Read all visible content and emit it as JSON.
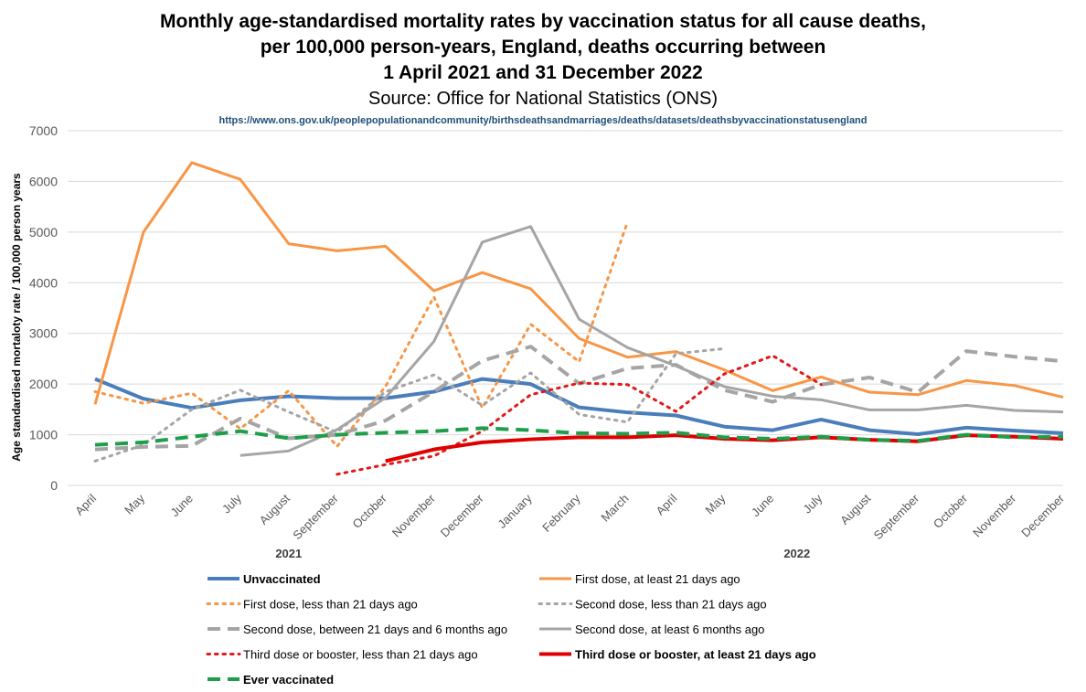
{
  "chart_data": {
    "type": "line",
    "title_lines": [
      "Monthly age-standardised mortality rates by vaccination status for all cause deaths,",
      "per 100,000 person-years, England, deaths occurring between",
      "1 April 2021 and 31 December 2022"
    ],
    "subtitle": "Source: Office for National Statistics (ONS)",
    "source_url": "https://www.ons.gov.uk/peoplepopulationandcommunity/birthsdeathsandmarriages/deaths/datasets/deathsbyvaccinationstatusengland",
    "ylabel": "Age standardised mortaloty rate / 100,000 person years",
    "ylim": [
      0,
      7000
    ],
    "yticks": [
      0,
      1000,
      2000,
      3000,
      4000,
      5000,
      6000,
      7000
    ],
    "categories": [
      "April",
      "May",
      "June",
      "July",
      "August",
      "September",
      "October",
      "November",
      "December",
      "January",
      "February",
      "March",
      "April",
      "May",
      "June",
      "July",
      "August",
      "September",
      "October",
      "November",
      "December"
    ],
    "year_labels": [
      {
        "label": "2021",
        "start": 0,
        "end": 8
      },
      {
        "label": "2022",
        "start": 9,
        "end": 20
      }
    ],
    "grid": "horizontal",
    "legend_position": "bottom",
    "series": [
      {
        "name": "Unvaccinated",
        "color": "#4a7ebb",
        "dash": "solid",
        "width": 4,
        "bold": true,
        "values": [
          2100,
          1710,
          1530,
          1680,
          1760,
          1720,
          1720,
          1850,
          2100,
          2000,
          1540,
          1440,
          1380,
          1160,
          1090,
          1300,
          1090,
          1010,
          1140,
          1080,
          1030
        ]
      },
      {
        "name": "First dose, at least 21 days ago",
        "color": "#f79646",
        "dash": "solid",
        "width": 3,
        "bold": false,
        "values": [
          1600,
          5000,
          6370,
          6040,
          4770,
          4630,
          4720,
          3840,
          4200,
          3880,
          2900,
          2530,
          2640,
          2280,
          1870,
          2140,
          1840,
          1790,
          2070,
          1970,
          1740
        ]
      },
      {
        "name": "First dose, less than 21 days ago",
        "color": "#f79646",
        "dash": "dot",
        "width": 3,
        "bold": false,
        "values": [
          1850,
          1620,
          1820,
          1120,
          1870,
          770,
          1950,
          3720,
          1530,
          3180,
          2440,
          5200,
          null,
          null,
          null,
          null,
          null,
          null,
          null,
          null,
          null
        ]
      },
      {
        "name": "Second dose, less than 21 days ago",
        "color": "#a5a5a5",
        "dash": "dot",
        "width": 3,
        "bold": false,
        "values": [
          480,
          800,
          1500,
          1880,
          1450,
          1050,
          1850,
          2180,
          1580,
          2220,
          1400,
          1250,
          2600,
          2700,
          null,
          null,
          null,
          null,
          null,
          null,
          null
        ]
      },
      {
        "name": "Second dose, between 21 days and 6 months ago",
        "color": "#a5a5a5",
        "dash": "dash",
        "width": 4,
        "bold": false,
        "values": [
          710,
          760,
          780,
          1320,
          930,
          1000,
          1280,
          1850,
          2460,
          2740,
          2010,
          2310,
          2380,
          1880,
          1650,
          1990,
          2130,
          1840,
          2650,
          2540,
          2450
        ]
      },
      {
        "name": "Second dose, at least 6 months ago",
        "color": "#a5a5a5",
        "dash": "solid",
        "width": 3,
        "bold": false,
        "values": [
          null,
          null,
          null,
          590,
          680,
          1100,
          1730,
          2840,
          4800,
          5110,
          3280,
          2720,
          2360,
          1950,
          1760,
          1690,
          1490,
          1490,
          1580,
          1480,
          1450
        ]
      },
      {
        "name": "Third dose or booster, less than 21 days ago",
        "color": "#e01a1a",
        "dash": "dot",
        "width": 3,
        "bold": false,
        "values": [
          null,
          null,
          null,
          null,
          null,
          220,
          410,
          580,
          1070,
          1790,
          2020,
          1990,
          1460,
          2200,
          2560,
          1990,
          null,
          null,
          null,
          null,
          null
        ]
      },
      {
        "name": "Third dose or booster, at least 21 days ago",
        "color": "#e00000",
        "dash": "solid",
        "width": 4,
        "bold": true,
        "values": [
          null,
          null,
          null,
          null,
          null,
          null,
          480,
          710,
          850,
          910,
          950,
          950,
          990,
          920,
          890,
          950,
          900,
          870,
          990,
          960,
          920
        ]
      },
      {
        "name": "Ever vaccinated",
        "color": "#1e9e4a",
        "dash": "dash",
        "width": 4,
        "bold": true,
        "values": [
          800,
          850,
          960,
          1070,
          930,
          1000,
          1040,
          1070,
          1130,
          1090,
          1030,
          1020,
          1040,
          950,
          920,
          960,
          900,
          880,
          1000,
          950,
          960
        ]
      }
    ]
  }
}
